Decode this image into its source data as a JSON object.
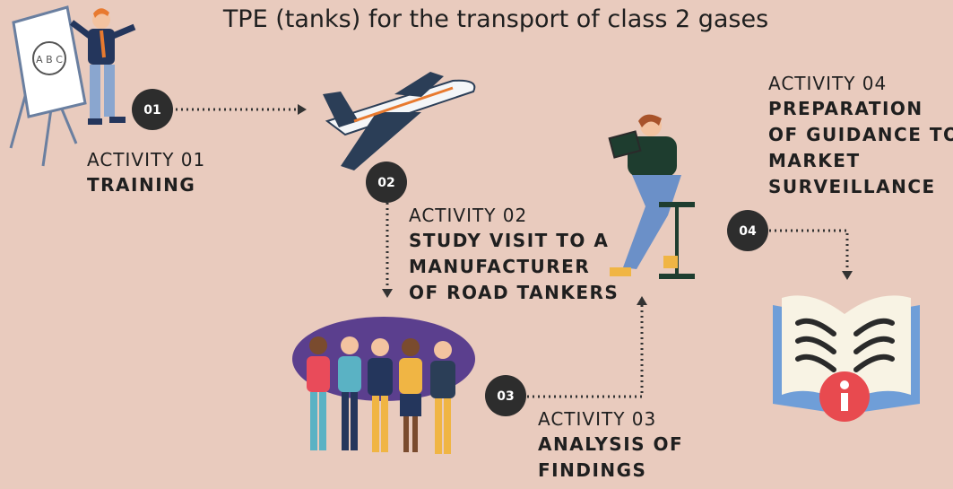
{
  "header": {
    "title": "TPE (tanks) for the transport of class 2 gases"
  },
  "activities": [
    {
      "number": "01",
      "label": "ACTIVITY 01",
      "lines": [
        "TRAINING"
      ]
    },
    {
      "number": "02",
      "label": "ACTIVITY 02",
      "lines": [
        "STUDY VISIT TO A",
        "MANUFACTURER",
        "OF ROAD TANKERS"
      ]
    },
    {
      "number": "03",
      "label": "ACTIVITY 03",
      "lines": [
        "ANALYSIS OF",
        "FINDINGS"
      ]
    },
    {
      "number": "04",
      "label": "ACTIVITY 04",
      "lines": [
        "PREPARATION",
        "OF GUIDANCE TO",
        "MARKET",
        "SURVEILLANCE"
      ]
    }
  ]
}
